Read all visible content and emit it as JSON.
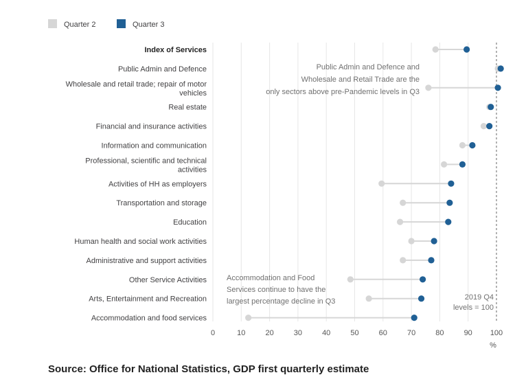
{
  "chart_data": {
    "type": "dot-range",
    "legend": {
      "position": "top-left"
    },
    "series": [
      {
        "name": "Quarter 2",
        "color": "#d6d6d6"
      },
      {
        "name": "Quarter 3",
        "color": "#206095"
      }
    ],
    "categories": [
      {
        "label": "Index of Services",
        "q2": 78.5,
        "q3": 89.5,
        "bold": true
      },
      {
        "label": "Public Admin and Defence",
        "q2": 100.5,
        "q3": 101.5
      },
      {
        "label": "Wholesale and retail trade; repair of motor vehicles",
        "label_lines": [
          "Wholesale and retail trade; repair of motor",
          "vehicles"
        ],
        "q2": 76.0,
        "q3": 100.5
      },
      {
        "label": "Real estate",
        "q2": 97.5,
        "q3": 98.0
      },
      {
        "label": "Financial and insurance activities",
        "q2": 95.5,
        "q3": 97.5
      },
      {
        "label": "Information and communication",
        "q2": 88.0,
        "q3": 91.5
      },
      {
        "label": "Professional, scientific and technical activities",
        "label_lines": [
          "Professional, scientific and technical",
          "activities"
        ],
        "q2": 81.5,
        "q3": 88.0
      },
      {
        "label": "Activities of HH as employers",
        "q2": 59.5,
        "q3": 84.0
      },
      {
        "label": "Transportation and storage",
        "q2": 67.0,
        "q3": 83.5
      },
      {
        "label": "Education",
        "q2": 66.0,
        "q3": 83.0
      },
      {
        "label": "Human health and social work activities",
        "q2": 70.0,
        "q3": 78.0
      },
      {
        "label": "Administrative and support activities",
        "q2": 67.0,
        "q3": 77.0
      },
      {
        "label": "Other Service Activities",
        "q2": 48.5,
        "q3": 74.0
      },
      {
        "label": "Arts, Entertainment and Recreation",
        "q2": 55.0,
        "q3": 73.5
      },
      {
        "label": "Accommodation and food services",
        "q2": 12.5,
        "q3": 71.0
      }
    ],
    "x_ticks": [
      0,
      10,
      20,
      30,
      40,
      50,
      60,
      70,
      80,
      90,
      100
    ],
    "xlim": [
      0,
      100
    ],
    "xlabel": "%",
    "grid": true,
    "reference_line": {
      "value": 100,
      "label_lines": [
        "2019 Q4",
        "levels = 100"
      ]
    },
    "annotations": [
      {
        "lines": [
          "Public Admin and Defence and",
          "Wholesale and Retail Trade are the",
          "only sectors above pre-Pandemic levels in Q3"
        ],
        "anchor": "right"
      },
      {
        "lines": [
          "Accommodation and Food",
          "Services continue to have the",
          "largest percentage decline in Q3"
        ],
        "anchor": "left"
      }
    ]
  },
  "source": "Source: Office for National Statistics, GDP first quarterly estimate"
}
